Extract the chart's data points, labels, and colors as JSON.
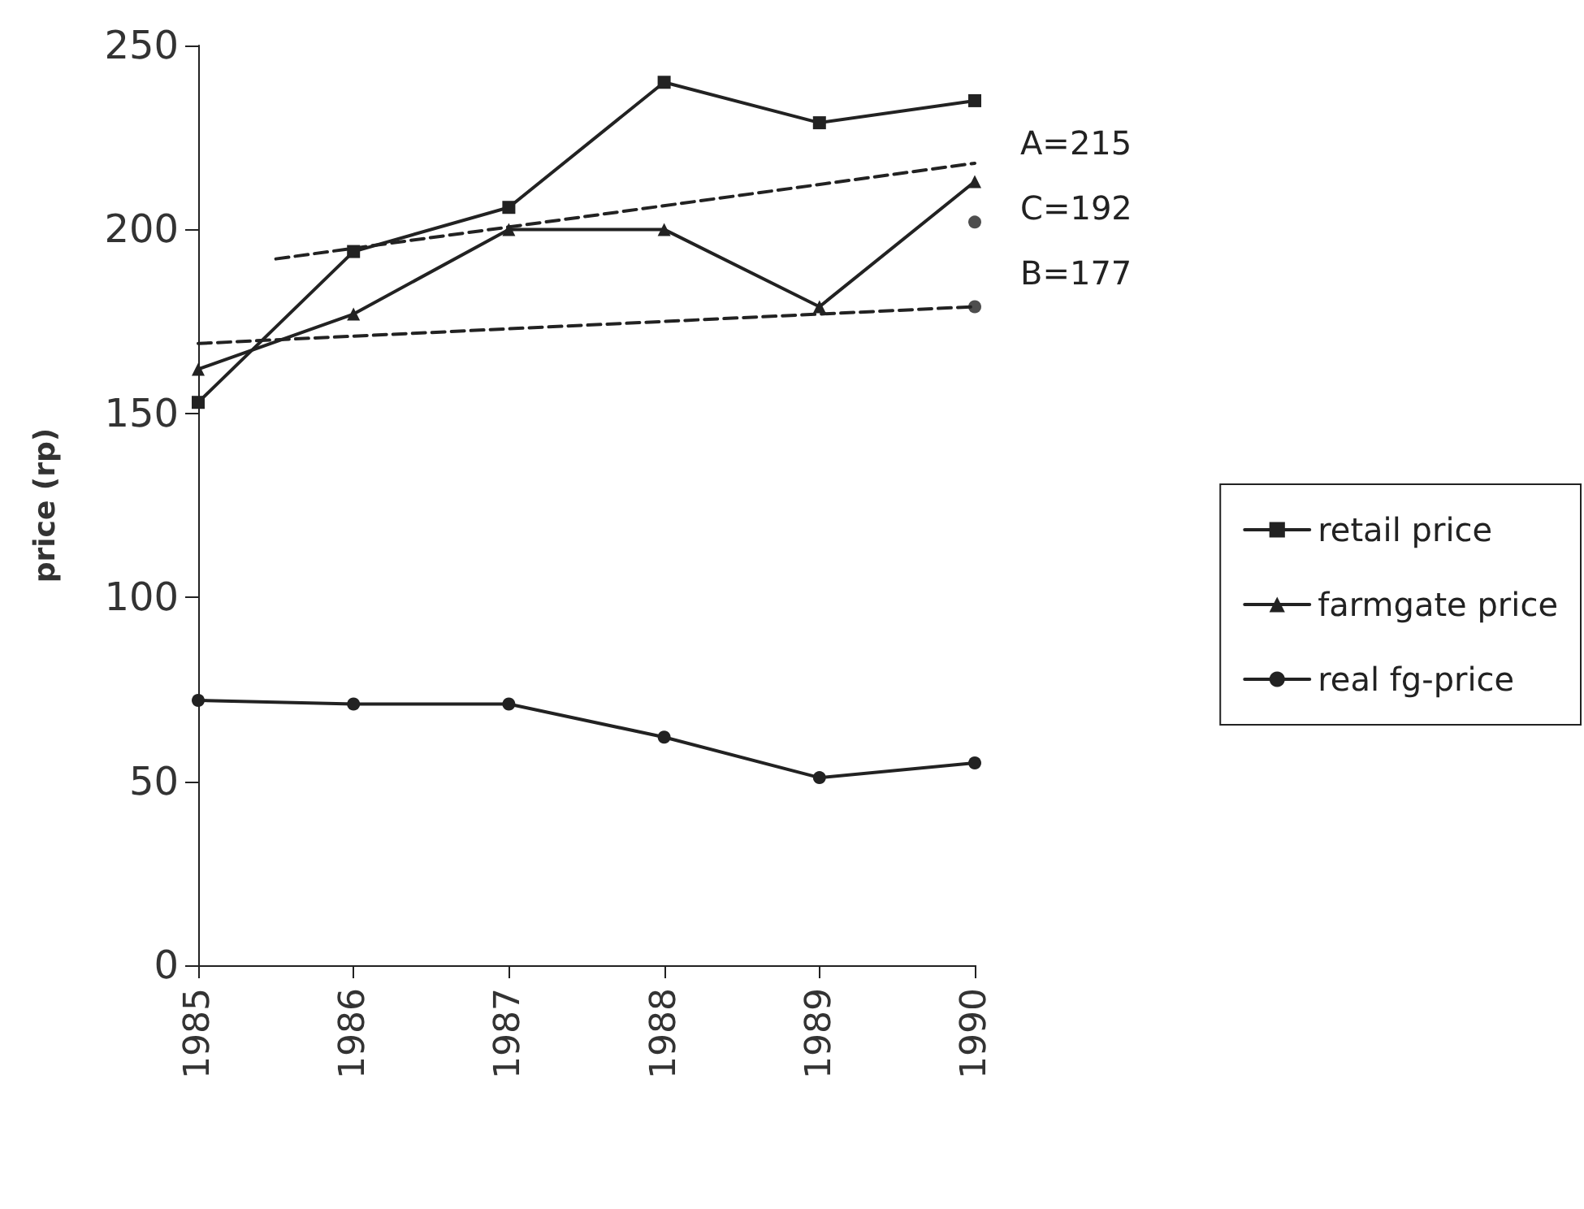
{
  "chart_data": {
    "type": "line",
    "ylabel": "price (rp)",
    "x": [
      1985,
      1986,
      1987,
      1988,
      1989,
      1990
    ],
    "xlim": [
      1985,
      1990
    ],
    "xticks": [
      1985,
      1986,
      1987,
      1988,
      1989,
      1990
    ],
    "ylim": [
      0,
      250
    ],
    "yticks": [
      0,
      50,
      100,
      150,
      200,
      250
    ],
    "grid": false,
    "legend": "right",
    "series": [
      {
        "name": "retail price",
        "color": "#222222",
        "marker": "square",
        "line_style": "solid",
        "values": [
          153,
          194,
          206,
          240,
          229,
          235
        ]
      },
      {
        "name": "farmgate price",
        "color": "#222222",
        "marker": "triangle",
        "line_style": "solid",
        "values": [
          162,
          177,
          200,
          200,
          179,
          213
        ]
      },
      {
        "name": "real fg-price",
        "color": "#222222",
        "marker": "circle",
        "line_style": "solid",
        "values": [
          72,
          71,
          71,
          62,
          51,
          55
        ]
      },
      {
        "type": "line",
        "color": "#222222",
        "marker": "none",
        "line_style": "dashed",
        "x": [
          1985.5,
          1990
        ],
        "values": [
          192,
          218
        ]
      },
      {
        "type": "line",
        "color": "#222222",
        "marker": "none",
        "line_style": "dashed",
        "x": [
          1985,
          1990
        ],
        "values": [
          169,
          179
        ]
      },
      {
        "type": "scatter",
        "color": "#222222",
        "marker": "circle",
        "x": [
          1990,
          1990
        ],
        "values": [
          202,
          179
        ]
      }
    ],
    "annotations": [
      "A=215",
      "C=192",
      "B=177"
    ]
  }
}
